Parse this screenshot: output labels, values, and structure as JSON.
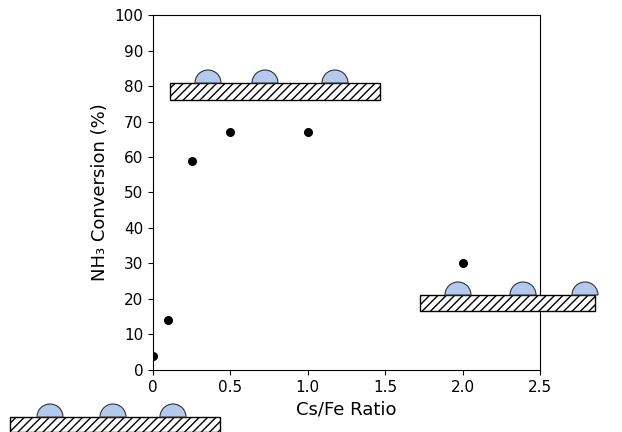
{
  "chart_data": {
    "type": "scatter",
    "x_label": "Cs/Fe Ratio",
    "y_label": "NH₃ Conversion (%)",
    "x": [
      0,
      0.1,
      0.25,
      0.5,
      1.0,
      2.0
    ],
    "values": [
      4,
      14,
      59,
      67,
      67,
      30
    ],
    "color": "#000000",
    "marker": "circle",
    "xlim": [
      0,
      2.5
    ],
    "xticks": [
      0,
      0.5,
      1.0,
      1.5,
      2.0,
      2.5
    ],
    "ylim": [
      0,
      100
    ],
    "yticks": [
      0,
      10,
      20,
      30,
      40,
      50,
      60,
      70,
      80,
      90,
      100
    ],
    "grid": false
  }
}
